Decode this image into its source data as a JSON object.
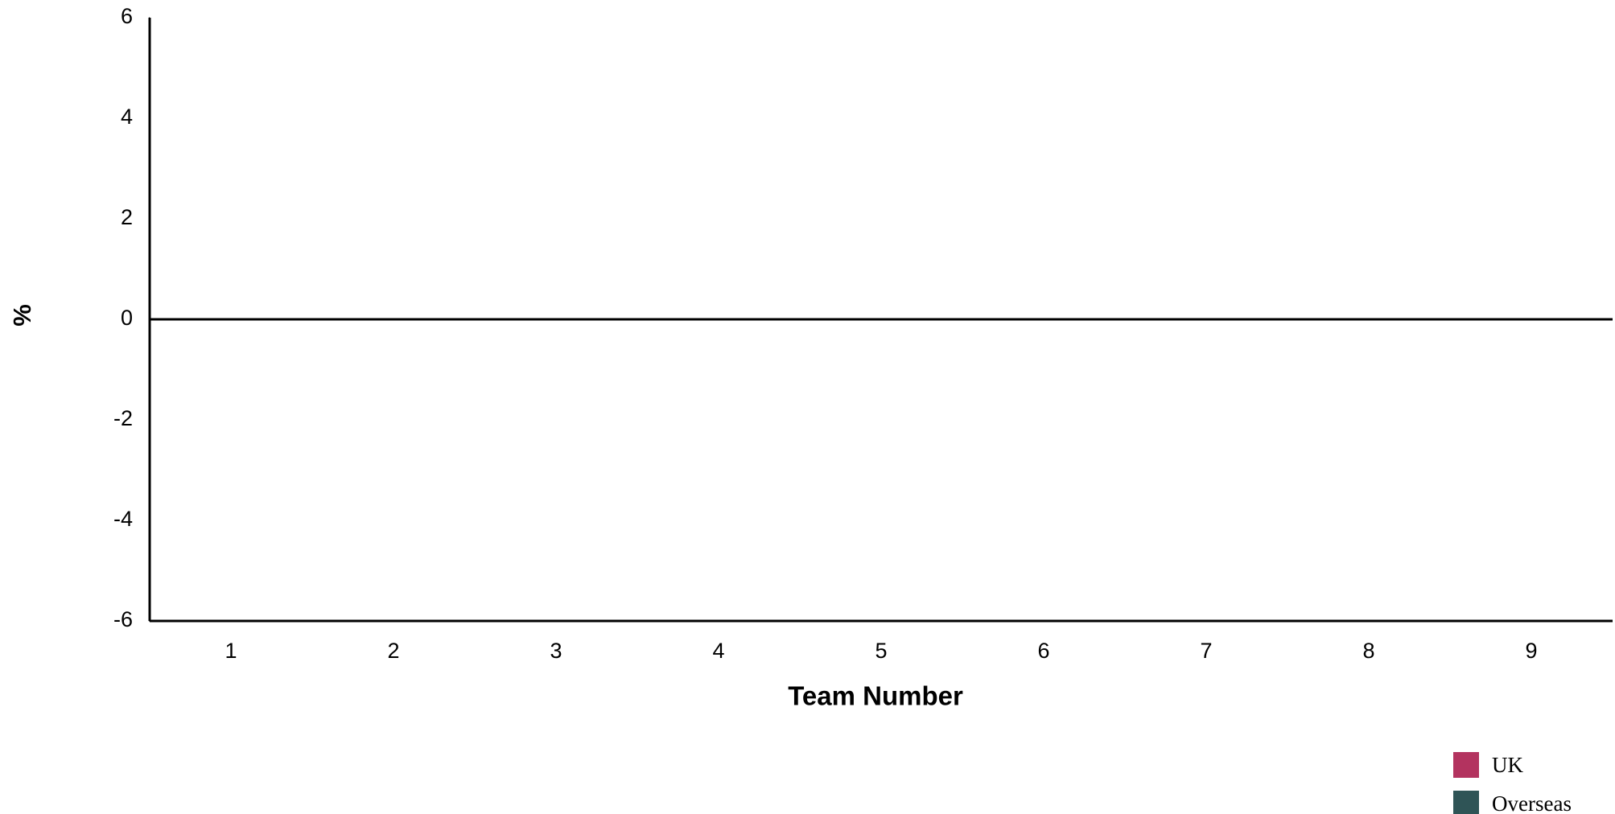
{
  "chart_data": {
    "type": "bar",
    "x_label": "Team Number",
    "y_label": "%",
    "categories": [
      "1",
      "2",
      "3",
      "4",
      "5",
      "6",
      "7",
      "8",
      "9"
    ],
    "series": [
      {
        "name": "UK",
        "color": "#b3335f",
        "values": [
          0,
          0,
          0,
          0,
          0,
          0,
          0,
          0,
          0
        ]
      },
      {
        "name": "Overseas",
        "color": "#2f5456",
        "values": [
          0,
          0,
          0,
          0,
          0,
          0,
          0,
          0,
          0
        ]
      }
    ],
    "ylim": [
      -6,
      6
    ],
    "yticks": [
      -6,
      -4,
      -2,
      0,
      2,
      4,
      6
    ],
    "grid": false,
    "legend": "bottom-right"
  }
}
